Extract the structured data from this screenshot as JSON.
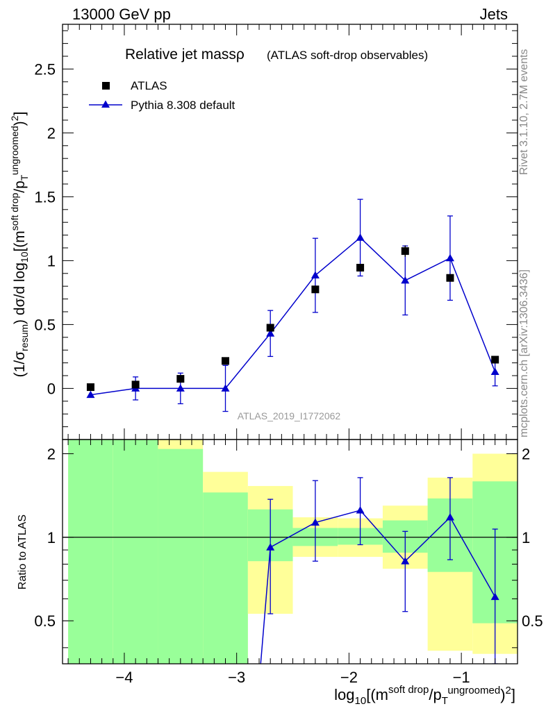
{
  "header": {
    "left": "13000 GeV pp",
    "right": "Jets"
  },
  "side_text": {
    "rivet": "Rivet 3.1.10,  2.7M events",
    "mcplots": "mcplots.cern.ch [arXiv:1306.3436]"
  },
  "chart_data": [
    {
      "type": "scatter",
      "title": "Relative jet massρ",
      "subtitle": "(ATLAS soft-drop observables)",
      "analysis": "ATLAS_2019_I1772062",
      "ylabel": "(1/σresum) dσ/d log10[(m soft drop / pT ungroomed)2]",
      "xlim": [
        -4.55,
        -0.5
      ],
      "ylim": [
        -0.4,
        2.85
      ],
      "xticks": [
        -4,
        -3,
        -2,
        -1
      ],
      "yticks": [
        0,
        0.5,
        1,
        1.5,
        2,
        2.5
      ],
      "ytick_labels": [
        "0",
        "0.5",
        "1",
        "1.5",
        "2",
        "2.5"
      ],
      "legend": [
        "ATLAS",
        "Pythia 8.308 default"
      ],
      "legend_position": "top-left",
      "series": [
        {
          "name": "ATLAS",
          "marker": "square",
          "color": "#000000",
          "x": [
            -4.3,
            -3.9,
            -3.5,
            -3.1,
            -2.7,
            -2.3,
            -1.9,
            -1.5,
            -1.1,
            -0.7
          ],
          "y": [
            0.01,
            0.03,
            0.075,
            0.215,
            0.475,
            0.775,
            0.945,
            1.075,
            0.865,
            0.225
          ],
          "yerr": [
            0.005,
            0.01,
            0.015,
            0.02,
            0.01,
            0.02,
            0.02,
            0.045,
            0.03,
            0.02
          ]
        },
        {
          "name": "Pythia 8.308 default",
          "marker": "triangle",
          "color": "#0000cc",
          "x": [
            -4.3,
            -3.9,
            -3.5,
            -3.1,
            -2.7,
            -2.3,
            -1.9,
            -1.5,
            -1.1,
            -0.7
          ],
          "y": [
            -0.05,
            0.0,
            0.0,
            0.0,
            0.43,
            0.885,
            1.18,
            0.845,
            1.02,
            0.13
          ],
          "yerr": [
            0.0,
            0.09,
            0.12,
            0.18,
            0.18,
            0.29,
            0.3,
            0.27,
            0.33,
            0.11
          ]
        }
      ]
    },
    {
      "type": "scatter",
      "xlabel": "log10[(m soft drop / pT ungroomed)2]",
      "ylabel": "Ratio to ATLAS",
      "xlim": [
        -4.55,
        -0.5
      ],
      "ylim": [
        0.35,
        2.25
      ],
      "xticks": [
        -4,
        -3,
        -2,
        -1
      ],
      "xtick_labels": [
        "−4",
        "−3",
        "−2",
        "−1"
      ],
      "yticks": [
        0.5,
        1,
        2
      ],
      "ytick_labels": [
        "0.5",
        "1",
        "2"
      ],
      "reference_line": 1,
      "bands": [
        {
          "x": [
            -4.5,
            -4.1
          ],
          "yellow": [
            0.0,
            10.0
          ],
          "green": [
            0.0,
            10.0
          ]
        },
        {
          "x": [
            -4.1,
            -3.7
          ],
          "yellow": [
            0.0,
            10.0
          ],
          "green": [
            0.0,
            10.0
          ]
        },
        {
          "x": [
            -3.7,
            -3.3
          ],
          "yellow": [
            0.0,
            2.55
          ],
          "green": [
            0.0,
            2.08
          ]
        },
        {
          "x": [
            -3.3,
            -2.9
          ],
          "yellow": [
            0.0,
            1.72
          ],
          "green": [
            0.0,
            1.45
          ]
        },
        {
          "x": [
            -2.9,
            -2.5
          ],
          "yellow": [
            0.53,
            1.53
          ],
          "green": [
            0.82,
            1.26
          ]
        },
        {
          "x": [
            -2.5,
            -2.1
          ],
          "yellow": [
            0.85,
            1.18
          ],
          "green": [
            0.93,
            1.08
          ]
        },
        {
          "x": [
            -2.1,
            -1.7
          ],
          "yellow": [
            0.85,
            1.17
          ],
          "green": [
            0.94,
            1.08
          ]
        },
        {
          "x": [
            -1.7,
            -1.3
          ],
          "yellow": [
            0.77,
            1.3
          ],
          "green": [
            0.88,
            1.15
          ]
        },
        {
          "x": [
            -1.3,
            -0.9
          ],
          "yellow": [
            0.39,
            1.64
          ],
          "green": [
            0.75,
            1.38
          ]
        },
        {
          "x": [
            -0.9,
            -0.5
          ],
          "yellow": [
            0.38,
            2.0
          ],
          "green": [
            0.49,
            1.59
          ]
        }
      ],
      "series": [
        {
          "name": "Pythia 8.308 default",
          "marker": "triangle",
          "color": "#0000cc",
          "x": [
            -2.7,
            -2.3,
            -1.9,
            -1.5,
            -1.1,
            -0.7
          ],
          "y": [
            0.92,
            1.13,
            1.25,
            0.82,
            1.18,
            0.61
          ],
          "yerr_low": [
            0.39,
            0.31,
            0.31,
            0.28,
            0.35,
            0.3
          ],
          "yerr_high": [
            0.45,
            0.47,
            0.39,
            0.23,
            0.46,
            0.46
          ],
          "lead_in": {
            "x": -2.8,
            "y": 0.3
          }
        }
      ]
    }
  ]
}
